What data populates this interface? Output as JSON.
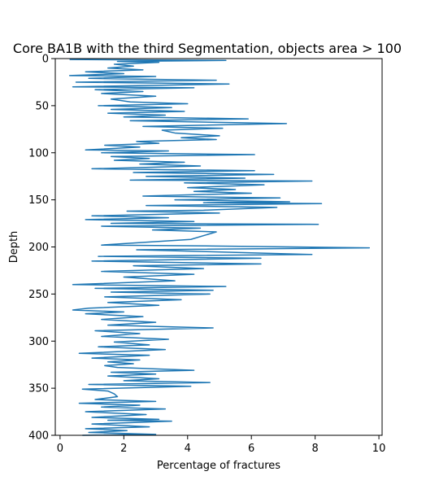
{
  "chart_data": {
    "type": "line",
    "title": "Core BA1B with the third Segmentation, objects area > 100",
    "xlabel": "Percentage of fractures",
    "ylabel": "Depth",
    "xlim": [
      -0.15,
      10.1
    ],
    "ylim": [
      400,
      0
    ],
    "y_inverted": true,
    "xticks": [
      0,
      2,
      4,
      6,
      8,
      10
    ],
    "yticks": [
      0,
      50,
      100,
      150,
      200,
      250,
      300,
      350,
      400
    ],
    "grid": false,
    "legend": "none",
    "series": [
      {
        "color": "#1f77b4",
        "points": [
          [
            0.3,
            1
          ],
          [
            5.2,
            2
          ],
          [
            1.8,
            3
          ],
          [
            3.1,
            4
          ],
          [
            1.7,
            6
          ],
          [
            2.3,
            8
          ],
          [
            1.5,
            10
          ],
          [
            2.6,
            12
          ],
          [
            0.8,
            14
          ],
          [
            2.0,
            16
          ],
          [
            0.3,
            18
          ],
          [
            3.0,
            19
          ],
          [
            0.9,
            21
          ],
          [
            4.9,
            23
          ],
          [
            0.5,
            25
          ],
          [
            5.3,
            27
          ],
          [
            0.4,
            30
          ],
          [
            4.2,
            31
          ],
          [
            1.1,
            33
          ],
          [
            2.6,
            35
          ],
          [
            1.3,
            37
          ],
          [
            3.0,
            40
          ],
          [
            1.6,
            43
          ],
          [
            2.2,
            46
          ],
          [
            4.0,
            48
          ],
          [
            1.2,
            50
          ],
          [
            3.5,
            52
          ],
          [
            1.6,
            54
          ],
          [
            3.9,
            56
          ],
          [
            1.5,
            58
          ],
          [
            3.3,
            60
          ],
          [
            2.0,
            62
          ],
          [
            5.9,
            64
          ],
          [
            2.2,
            66
          ],
          [
            7.1,
            69
          ],
          [
            2.6,
            72
          ],
          [
            5.1,
            74
          ],
          [
            3.2,
            76
          ],
          [
            3.6,
            79
          ],
          [
            5.0,
            82
          ],
          [
            3.8,
            84
          ],
          [
            4.9,
            86
          ],
          [
            2.4,
            88
          ],
          [
            3.1,
            90
          ],
          [
            1.4,
            92
          ],
          [
            2.5,
            94
          ],
          [
            0.8,
            97
          ],
          [
            3.4,
            98
          ],
          [
            1.3,
            100
          ],
          [
            6.1,
            102
          ],
          [
            1.6,
            104
          ],
          [
            2.8,
            106
          ],
          [
            1.7,
            108
          ],
          [
            3.9,
            110
          ],
          [
            2.5,
            112
          ],
          [
            4.4,
            114
          ],
          [
            1.0,
            117
          ],
          [
            6.1,
            119
          ],
          [
            2.3,
            121
          ],
          [
            6.7,
            123
          ],
          [
            2.7,
            125
          ],
          [
            5.8,
            127
          ],
          [
            2.2,
            129
          ],
          [
            7.9,
            130
          ],
          [
            3.9,
            132
          ],
          [
            6.4,
            134
          ],
          [
            4.0,
            137
          ],
          [
            5.5,
            139
          ],
          [
            4.2,
            141
          ],
          [
            6.0,
            143
          ],
          [
            2.6,
            146
          ],
          [
            6.9,
            148
          ],
          [
            3.6,
            150
          ],
          [
            7.2,
            152
          ],
          [
            4.5,
            153
          ],
          [
            8.2,
            154
          ],
          [
            2.7,
            156
          ],
          [
            6.8,
            158
          ],
          [
            4.5,
            161
          ],
          [
            2.1,
            162
          ],
          [
            5.0,
            164
          ],
          [
            1.0,
            167
          ],
          [
            3.4,
            169
          ],
          [
            0.8,
            171
          ],
          [
            4.2,
            173
          ],
          [
            1.6,
            175
          ],
          [
            8.1,
            176
          ],
          [
            1.3,
            178
          ],
          [
            4.4,
            180
          ],
          [
            2.9,
            182
          ],
          [
            4.9,
            184
          ],
          [
            4.1,
            192
          ],
          [
            1.3,
            198
          ],
          [
            4.8,
            199
          ],
          [
            9.7,
            201
          ],
          [
            2.4,
            203
          ],
          [
            4.6,
            205
          ],
          [
            7.9,
            208
          ],
          [
            1.2,
            210
          ],
          [
            6.3,
            212
          ],
          [
            1.0,
            215
          ],
          [
            6.3,
            218
          ],
          [
            2.3,
            220
          ],
          [
            4.5,
            223
          ],
          [
            1.3,
            226
          ],
          [
            4.2,
            229
          ],
          [
            2.0,
            232
          ],
          [
            3.6,
            236
          ],
          [
            0.4,
            240
          ],
          [
            5.2,
            242
          ],
          [
            1.1,
            244
          ],
          [
            4.8,
            246
          ],
          [
            1.6,
            248
          ],
          [
            4.7,
            250
          ],
          [
            1.4,
            253
          ],
          [
            3.8,
            256
          ],
          [
            1.5,
            259
          ],
          [
            3.1,
            262
          ],
          [
            0.9,
            265
          ],
          [
            0.4,
            267
          ],
          [
            2.0,
            269
          ],
          [
            0.8,
            271
          ],
          [
            2.6,
            274
          ],
          [
            1.3,
            277
          ],
          [
            3.0,
            280
          ],
          [
            1.5,
            283
          ],
          [
            4.8,
            286
          ],
          [
            1.1,
            289
          ],
          [
            2.5,
            292
          ],
          [
            1.3,
            295
          ],
          [
            3.4,
            298
          ],
          [
            1.7,
            301
          ],
          [
            2.8,
            304
          ],
          [
            1.2,
            306
          ],
          [
            3.3,
            309
          ],
          [
            0.6,
            313
          ],
          [
            2.8,
            315
          ],
          [
            1.0,
            318
          ],
          [
            2.5,
            320
          ],
          [
            1.5,
            322
          ],
          [
            2.3,
            324
          ],
          [
            1.4,
            326
          ],
          [
            1.8,
            328
          ],
          [
            4.2,
            331
          ],
          [
            1.6,
            333
          ],
          [
            3.0,
            335
          ],
          [
            1.5,
            337
          ],
          [
            3.1,
            340
          ],
          [
            2.0,
            342
          ],
          [
            4.7,
            344
          ],
          [
            0.9,
            346
          ],
          [
            4.1,
            348
          ],
          [
            0.7,
            351
          ],
          [
            1.5,
            353
          ],
          [
            1.7,
            356
          ],
          [
            1.8,
            359
          ],
          [
            1.1,
            362
          ],
          [
            3.0,
            364
          ],
          [
            0.6,
            366
          ],
          [
            2.5,
            368
          ],
          [
            1.3,
            370
          ],
          [
            3.3,
            372
          ],
          [
            0.8,
            375
          ],
          [
            2.7,
            378
          ],
          [
            1.0,
            381
          ],
          [
            3.1,
            383
          ],
          [
            1.5,
            384
          ],
          [
            3.5,
            385
          ],
          [
            1.0,
            388
          ],
          [
            2.8,
            391
          ],
          [
            0.8,
            393
          ],
          [
            2.1,
            395
          ],
          [
            0.9,
            397
          ],
          [
            3.0,
            399
          ],
          [
            0.7,
            400
          ]
        ]
      }
    ]
  }
}
